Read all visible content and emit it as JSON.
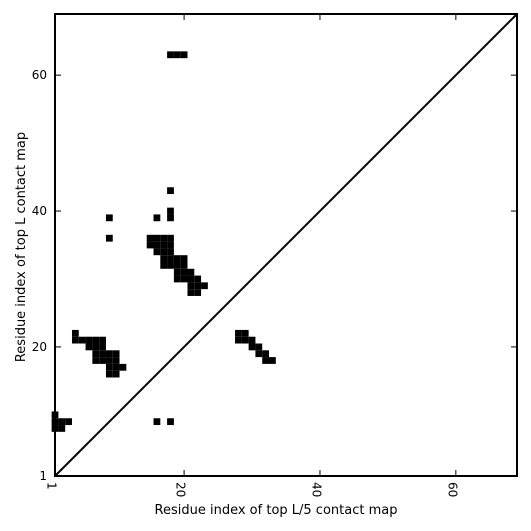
{
  "chart_data": {
    "type": "heatmap",
    "title": "",
    "xlabel": "Residue index of top L/5 contact map",
    "ylabel": "Residue index of top L contact map",
    "xlim": [
      1,
      69
    ],
    "ylim": [
      1,
      69
    ],
    "x_ticks": [
      {
        "value": 1,
        "label": "1"
      },
      {
        "value": 20,
        "label": "20"
      },
      {
        "value": 40,
        "label": "40"
      },
      {
        "value": 60,
        "label": "60"
      }
    ],
    "y_ticks": [
      {
        "value": 1,
        "label": "1"
      },
      {
        "value": 20,
        "label": "20"
      },
      {
        "value": 40,
        "label": "40"
      },
      {
        "value": 60,
        "label": "60"
      }
    ],
    "diagonal": true,
    "grid": false,
    "contacts": [
      [
        18,
        63
      ],
      [
        19,
        63
      ],
      [
        20,
        63
      ],
      [
        18,
        43
      ],
      [
        18,
        40
      ],
      [
        9,
        39
      ],
      [
        16,
        39
      ],
      [
        18,
        39
      ],
      [
        9,
        36
      ],
      [
        15,
        36
      ],
      [
        16,
        36
      ],
      [
        17,
        36
      ],
      [
        18,
        36
      ],
      [
        15,
        35
      ],
      [
        16,
        35
      ],
      [
        17,
        35
      ],
      [
        18,
        35
      ],
      [
        16,
        34
      ],
      [
        17,
        34
      ],
      [
        18,
        34
      ],
      [
        17,
        33
      ],
      [
        18,
        33
      ],
      [
        19,
        33
      ],
      [
        20,
        33
      ],
      [
        17,
        32
      ],
      [
        18,
        32
      ],
      [
        19,
        32
      ],
      [
        20,
        32
      ],
      [
        19,
        31
      ],
      [
        20,
        31
      ],
      [
        21,
        31
      ],
      [
        19,
        30
      ],
      [
        20,
        30
      ],
      [
        21,
        30
      ],
      [
        22,
        30
      ],
      [
        21,
        29
      ],
      [
        22,
        29
      ],
      [
        23,
        29
      ],
      [
        21,
        28
      ],
      [
        22,
        28
      ],
      [
        4,
        22
      ],
      [
        28,
        22
      ],
      [
        29,
        22
      ],
      [
        4,
        21
      ],
      [
        5,
        21
      ],
      [
        6,
        21
      ],
      [
        7,
        21
      ],
      [
        8,
        21
      ],
      [
        28,
        21
      ],
      [
        29,
        21
      ],
      [
        30,
        21
      ],
      [
        6,
        20
      ],
      [
        7,
        20
      ],
      [
        8,
        20
      ],
      [
        30,
        20
      ],
      [
        31,
        20
      ],
      [
        7,
        19
      ],
      [
        8,
        19
      ],
      [
        9,
        19
      ],
      [
        10,
        19
      ],
      [
        31,
        19
      ],
      [
        32,
        19
      ],
      [
        7,
        18
      ],
      [
        8,
        18
      ],
      [
        9,
        18
      ],
      [
        10,
        18
      ],
      [
        32,
        18
      ],
      [
        33,
        18
      ],
      [
        9,
        17
      ],
      [
        10,
        17
      ],
      [
        11,
        17
      ],
      [
        9,
        16
      ],
      [
        10,
        16
      ],
      [
        1,
        10
      ],
      [
        1,
        9
      ],
      [
        2,
        9
      ],
      [
        3,
        9
      ],
      [
        16,
        9
      ],
      [
        18,
        9
      ],
      [
        1,
        8
      ],
      [
        2,
        8
      ]
    ]
  }
}
